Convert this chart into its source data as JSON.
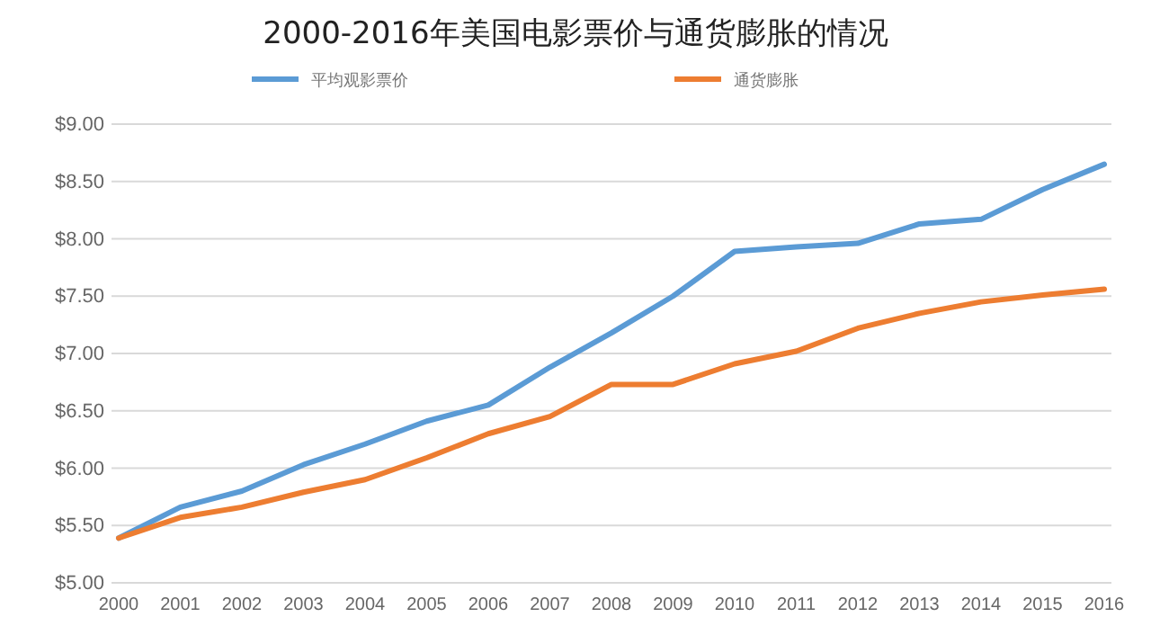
{
  "chart_data": {
    "type": "line",
    "title": "2000-2016年美国电影票价与通货膨胀的情况",
    "categories": [
      "2000",
      "2001",
      "2002",
      "2003",
      "2004",
      "2005",
      "2006",
      "2007",
      "2008",
      "2009",
      "2010",
      "2011",
      "2012",
      "2013",
      "2014",
      "2015",
      "2016"
    ],
    "series": [
      {
        "name": "平均观影票价",
        "color": "#5b9bd5",
        "values": [
          5.39,
          5.66,
          5.8,
          6.03,
          6.21,
          6.41,
          6.55,
          6.88,
          7.18,
          7.5,
          7.89,
          7.93,
          7.96,
          8.13,
          8.17,
          8.43,
          8.65
        ]
      },
      {
        "name": "通货膨胀",
        "color": "#ed7d31",
        "values": [
          5.39,
          5.57,
          5.66,
          5.79,
          5.9,
          6.09,
          6.3,
          6.45,
          6.73,
          6.73,
          6.91,
          7.02,
          7.22,
          7.35,
          7.45,
          7.51,
          7.56
        ]
      }
    ],
    "ylim": [
      5,
      9
    ],
    "yticks": [
      {
        "value": 5,
        "label": "$5.00"
      },
      {
        "value": 5.5,
        "label": "$5.50"
      },
      {
        "value": 6,
        "label": "$6.00"
      },
      {
        "value": 6.5,
        "label": "$6.50"
      },
      {
        "value": 7,
        "label": "$7.00"
      },
      {
        "value": 7.5,
        "label": "$7.50"
      },
      {
        "value": 8,
        "label": "$8.00"
      },
      {
        "value": 8.5,
        "label": "$8.50"
      },
      {
        "value": 9,
        "label": "$9.00"
      }
    ],
    "grid": "y",
    "legend": "top",
    "marker": "none",
    "line_style": "solid"
  }
}
